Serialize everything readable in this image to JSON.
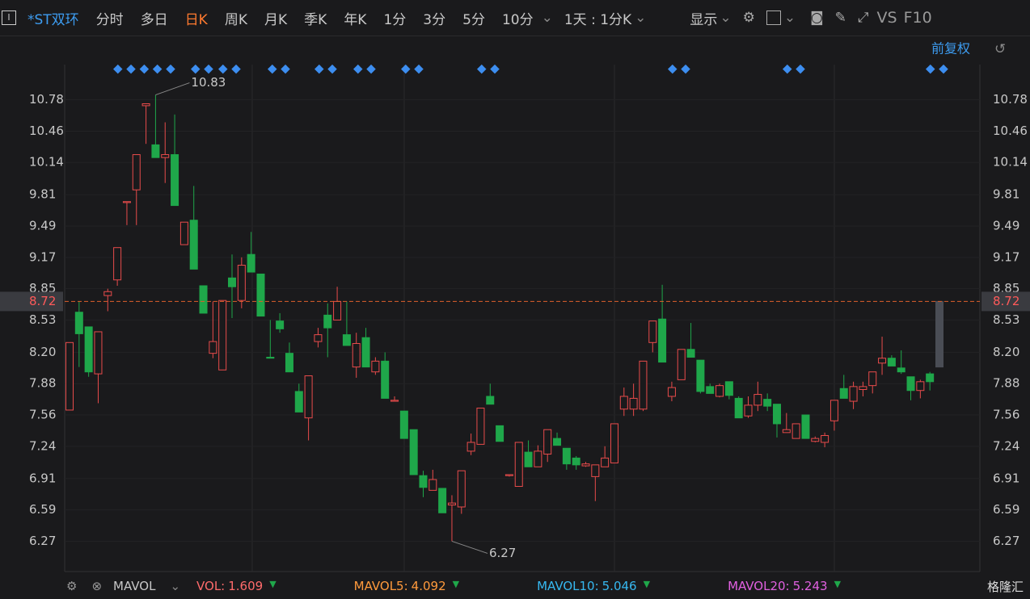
{
  "toolbar": {
    "stock": "*ST双环",
    "tabs": [
      "分时",
      "多日",
      "日K",
      "周K",
      "月K",
      "季K",
      "年K",
      "1分",
      "3分",
      "5分",
      "10分"
    ],
    "period": "1天 : 1分K",
    "display": "显示",
    "vs": "VS",
    "f10": "F10",
    "adjust": "前复权"
  },
  "footer": {
    "indicator": "MAVOL",
    "items": [
      {
        "name": "VOL:",
        "value": "1.609",
        "color": "#ff6b6b"
      },
      {
        "name": "MAVOL5:",
        "value": "4.092",
        "color": "#ff9a3c"
      },
      {
        "name": "MAVOL10:",
        "value": "5.046",
        "color": "#36b8f0"
      },
      {
        "name": "MAVOL20:",
        "value": "5.243",
        "color": "#e060e0"
      }
    ],
    "brand": "格隆汇"
  },
  "chart_data": {
    "type": "candlestick",
    "categories": [
      null,
      null,
      null,
      null,
      null,
      null,
      null,
      null,
      null,
      null,
      null,
      null,
      null,
      null,
      null,
      null,
      null,
      null,
      null,
      null,
      null,
      null,
      null,
      null,
      null,
      null,
      null,
      null,
      null,
      null,
      null,
      null,
      null,
      null,
      null,
      null,
      null,
      null,
      null,
      null,
      null,
      null,
      null,
      null,
      null,
      null,
      null,
      null,
      null,
      null,
      null,
      null,
      null,
      null,
      null,
      null,
      null,
      null,
      null,
      null,
      null,
      null,
      null,
      null,
      null,
      null,
      null,
      null,
      null,
      null,
      null,
      null,
      null,
      null,
      null,
      null,
      null,
      null,
      null,
      null,
      null,
      null,
      null,
      null,
      null,
      null,
      null,
      null,
      null,
      null,
      null,
      null
    ],
    "open": [
      7.61,
      8.61,
      8.46,
      7.98,
      8.78,
      8.94,
      9.73,
      9.86,
      10.72,
      10.32,
      10.19,
      10.22,
      9.3,
      9.55,
      8.88,
      8.19,
      8.02,
      8.96,
      8.73,
      9.2,
      9.0,
      8.15,
      8.52,
      8.19,
      7.8,
      7.53,
      8.31,
      8.58,
      8.53,
      8.38,
      8.05,
      8.35,
      8.0,
      8.11,
      7.7,
      7.6,
      7.41,
      6.94,
      6.79,
      6.81,
      6.64,
      6.62,
      7.19,
      7.26,
      7.75,
      7.45,
      6.94,
      6.83,
      7.18,
      7.03,
      7.16,
      7.32,
      7.22,
      7.12,
      7.04,
      6.93,
      7.03,
      7.07,
      7.62,
      7.62,
      7.62,
      8.3,
      8.54,
      7.75,
      7.92,
      8.23,
      8.12,
      7.85,
      7.75,
      7.9,
      7.73,
      7.55,
      7.66,
      7.72,
      7.67,
      7.38,
      7.32,
      7.56,
      7.29,
      7.28,
      7.5,
      7.83,
      7.7,
      7.82,
      7.86,
      8.09,
      8.14,
      8.04,
      7.95,
      7.81,
      7.98,
      8.05
    ],
    "high": [
      8.3,
      8.72,
      8.46,
      8.41,
      8.85,
      9.27,
      9.74,
      10.22,
      10.74,
      10.83,
      10.55,
      10.63,
      9.53,
      9.9,
      8.88,
      8.72,
      8.73,
      9.2,
      9.17,
      9.43,
      9.0,
      8.53,
      8.6,
      8.3,
      7.88,
      7.96,
      8.45,
      8.7,
      8.87,
      8.72,
      8.4,
      8.45,
      8.15,
      8.2,
      7.75,
      7.6,
      7.41,
      6.99,
      7.0,
      6.81,
      6.74,
      6.99,
      7.37,
      7.63,
      7.88,
      7.45,
      6.95,
      7.28,
      7.3,
      7.25,
      7.41,
      7.38,
      7.22,
      7.14,
      7.08,
      7.05,
      7.24,
      7.47,
      7.84,
      7.88,
      8.11,
      8.52,
      8.89,
      7.9,
      8.23,
      8.5,
      8.12,
      7.88,
      7.88,
      7.9,
      7.75,
      7.75,
      7.9,
      7.78,
      7.67,
      7.58,
      7.47,
      7.56,
      7.34,
      7.38,
      7.71,
      7.97,
      7.9,
      7.9,
      8.0,
      8.36,
      8.17,
      8.22,
      7.95,
      7.92,
      8.0,
      8.72
    ],
    "low": [
      7.61,
      8.05,
      7.95,
      7.68,
      8.62,
      8.88,
      9.5,
      9.5,
      10.33,
      10.19,
      9.93,
      9.7,
      9.3,
      9.05,
      8.6,
      8.14,
      8.02,
      8.55,
      8.65,
      9.02,
      8.57,
      8.14,
      8.4,
      8.0,
      7.59,
      7.3,
      8.25,
      8.15,
      8.53,
      8.27,
      7.94,
      8.05,
      7.97,
      7.73,
      7.7,
      7.32,
      6.95,
      6.72,
      6.79,
      6.56,
      6.27,
      6.55,
      7.15,
      7.26,
      7.67,
      7.29,
      6.93,
      6.83,
      7.03,
      7.03,
      7.08,
      7.25,
      7.0,
      7.0,
      7.03,
      6.68,
      7.03,
      7.07,
      7.55,
      7.55,
      7.6,
      8.2,
      8.1,
      7.7,
      7.92,
      8.15,
      7.78,
      7.78,
      7.74,
      7.72,
      7.53,
      7.53,
      7.6,
      7.6,
      7.33,
      7.38,
      7.32,
      7.32,
      7.28,
      7.23,
      7.4,
      7.73,
      7.62,
      7.75,
      7.78,
      7.97,
      8.06,
      7.98,
      7.71,
      7.73,
      7.81,
      8.05
    ],
    "close": [
      8.3,
      8.39,
      8.0,
      8.41,
      8.82,
      9.27,
      9.74,
      10.22,
      10.74,
      10.19,
      10.22,
      9.7,
      9.53,
      9.05,
      8.6,
      8.31,
      8.73,
      8.87,
      9.09,
      9.02,
      8.57,
      8.14,
      8.44,
      8.0,
      7.59,
      7.96,
      8.38,
      8.45,
      8.72,
      8.27,
      8.29,
      8.05,
      8.11,
      7.73,
      7.71,
      7.32,
      6.95,
      6.82,
      6.9,
      6.56,
      6.66,
      6.99,
      7.28,
      7.63,
      7.67,
      7.29,
      6.95,
      7.28,
      7.03,
      7.19,
      7.41,
      7.25,
      7.06,
      7.05,
      7.06,
      7.05,
      7.12,
      7.47,
      7.75,
      7.73,
      8.11,
      8.52,
      8.1,
      7.84,
      8.23,
      8.15,
      7.8,
      7.78,
      7.86,
      7.76,
      7.53,
      7.66,
      7.77,
      7.65,
      7.47,
      7.41,
      7.47,
      7.32,
      7.32,
      7.35,
      7.71,
      7.73,
      7.85,
      7.85,
      8.0,
      8.14,
      8.06,
      8.0,
      7.81,
      7.9,
      7.9,
      8.72
    ],
    "up_color": "#e84b4b",
    "down_color": "#1fa74a",
    "preview_color": "#4a4d55",
    "ylim": [
      5.96,
      11.14
    ],
    "yticks": [
      6.27,
      6.59,
      6.91,
      7.24,
      7.56,
      7.88,
      {
        "value": 8.2,
        "label": "8.20"
      },
      8.53,
      8.85,
      9.17,
      9.49,
      9.81,
      10.14,
      10.46,
      10.78
    ],
    "last_price": 8.72,
    "max_label": 10.83,
    "min_label": 6.27
  }
}
